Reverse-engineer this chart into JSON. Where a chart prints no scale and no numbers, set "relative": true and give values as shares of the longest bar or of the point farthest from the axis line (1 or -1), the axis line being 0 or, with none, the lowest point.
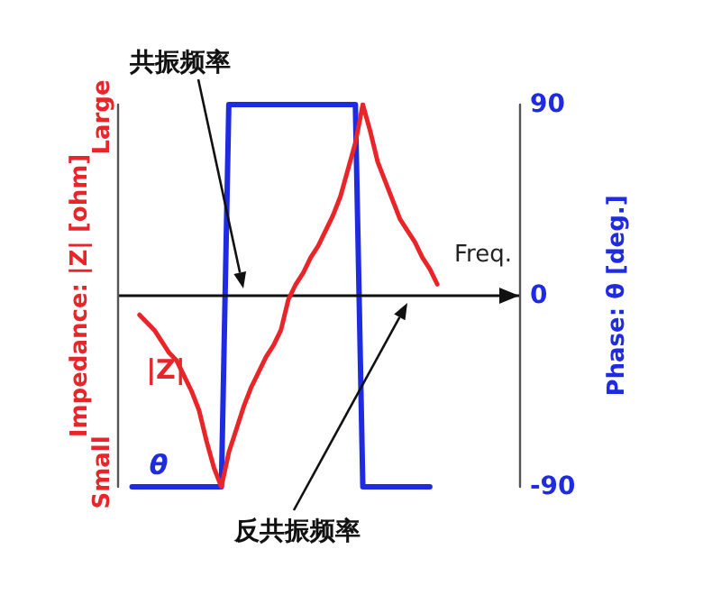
{
  "chart_data": [
    {
      "type": "line",
      "xlabel": "Freq.",
      "ylabel": "Phase: θ [deg.]",
      "annotations": [
        "共振频率",
        "反共振频率"
      ],
      "categories": [
        null,
        null,
        null,
        null,
        null,
        null,
        null,
        null,
        null,
        null,
        null,
        null,
        null,
        null,
        null,
        null,
        null,
        null,
        null,
        null,
        null,
        null,
        null,
        null,
        null,
        null,
        null,
        null,
        null,
        null,
        null,
        null,
        null,
        null,
        null,
        null,
        null,
        null,
        null,
        null,
        null,
        null,
        null,
        null,
        null,
        null,
        null,
        null,
        null,
        null,
        null,
        null,
        null,
        null,
        null
      ],
      "series": [
        {
          "name": "θ",
          "color": "#1f2be0",
          "values": [
            null,
            null,
            -90,
            -90,
            -90,
            -90,
            -90,
            -90,
            -90,
            -90,
            -90,
            -90,
            -90,
            -90,
            -90,
            90,
            90,
            90,
            90,
            90,
            90,
            90,
            90,
            90,
            90,
            90,
            90,
            90,
            90,
            90,
            90,
            90,
            90,
            -90,
            -90,
            -90,
            -90,
            -90,
            -90,
            -90,
            -90,
            -90,
            -90,
            null,
            null,
            null,
            null,
            null,
            null,
            null,
            null,
            null,
            null,
            null,
            null
          ]
        }
      ],
      "ylim": [
        -90,
        90
      ],
      "yticks": [
        -90,
        0,
        90
      ],
      "ref_lines": [
        {
          "axis": "y",
          "value": 0,
          "color": "#111111"
        }
      ],
      "grid": false,
      "legend": false,
      "marker": "none",
      "line_style": "solid"
    },
    {
      "type": "line",
      "ylabel": "Impedance: |Z| [ohm]",
      "annotations": [
        "Small",
        "Large"
      ],
      "categories": [
        null,
        null,
        null,
        null,
        null,
        null,
        null,
        null,
        null,
        null,
        null,
        null,
        null,
        null,
        null,
        null,
        null,
        null,
        null,
        null,
        null,
        null,
        null,
        null,
        null,
        null,
        null,
        null,
        null,
        null,
        null,
        null,
        null,
        null,
        null,
        null,
        null,
        null,
        null,
        null,
        null,
        null,
        null,
        null,
        null,
        null,
        null,
        null,
        null,
        null,
        null,
        null,
        null,
        null,
        null
      ],
      "relative": true,
      "series": [
        {
          "name": "|Z|",
          "color": "#e8262a",
          "values": [
            null,
            null,
            null,
            0.45,
            0.43,
            0.41,
            0.38,
            0.35,
            0.33,
            0.29,
            0.25,
            0.2,
            0.12,
            0.05,
            0,
            0.09,
            0.15,
            0.21,
            0.26,
            0.3,
            0.34,
            0.37,
            0.41,
            0.49,
            0.53,
            0.56,
            0.6,
            0.63,
            0.67,
            0.71,
            0.76,
            0.83,
            0.9,
            1,
            0.93,
            0.85,
            0.8,
            0.75,
            0.7,
            0.67,
            0.64,
            0.6,
            0.57,
            0.53,
            null,
            null,
            null,
            null,
            null,
            null,
            null,
            null,
            null,
            null,
            null
          ]
        }
      ],
      "grid": false,
      "legend": false,
      "marker": "none",
      "line_style": "solid"
    }
  ]
}
